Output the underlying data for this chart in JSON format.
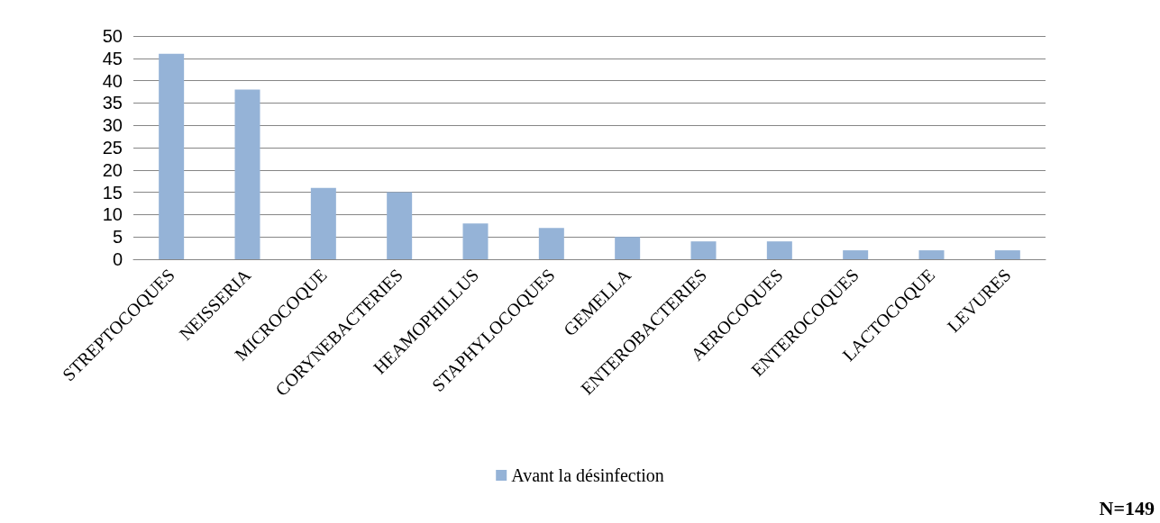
{
  "chart_data": {
    "type": "bar",
    "categories": [
      "STREPTOCOQUES",
      "NEISSERIA",
      "MICROCOQUE",
      "CORYNEBACTERIES",
      "HEAMOPHILLUS",
      "STAPHYLOCOQUES",
      "GEMELLA",
      "ENTEROBACTERIES",
      "AEROCOQUES",
      "ENTEROCOQUES",
      "LACTOCOQUE",
      "LEVURES"
    ],
    "series": [
      {
        "name": "Avant la désinfection",
        "color": "#95b3d7",
        "values": [
          46,
          38,
          16,
          15,
          8,
          7,
          5,
          4,
          4,
          2,
          2,
          2
        ]
      }
    ],
    "ylim": [
      0,
      50
    ],
    "yticks": [
      0,
      5,
      10,
      15,
      20,
      25,
      30,
      35,
      40,
      45,
      50
    ],
    "grid": "y",
    "legend": "bottom",
    "annotations": [
      "N=149"
    ]
  }
}
